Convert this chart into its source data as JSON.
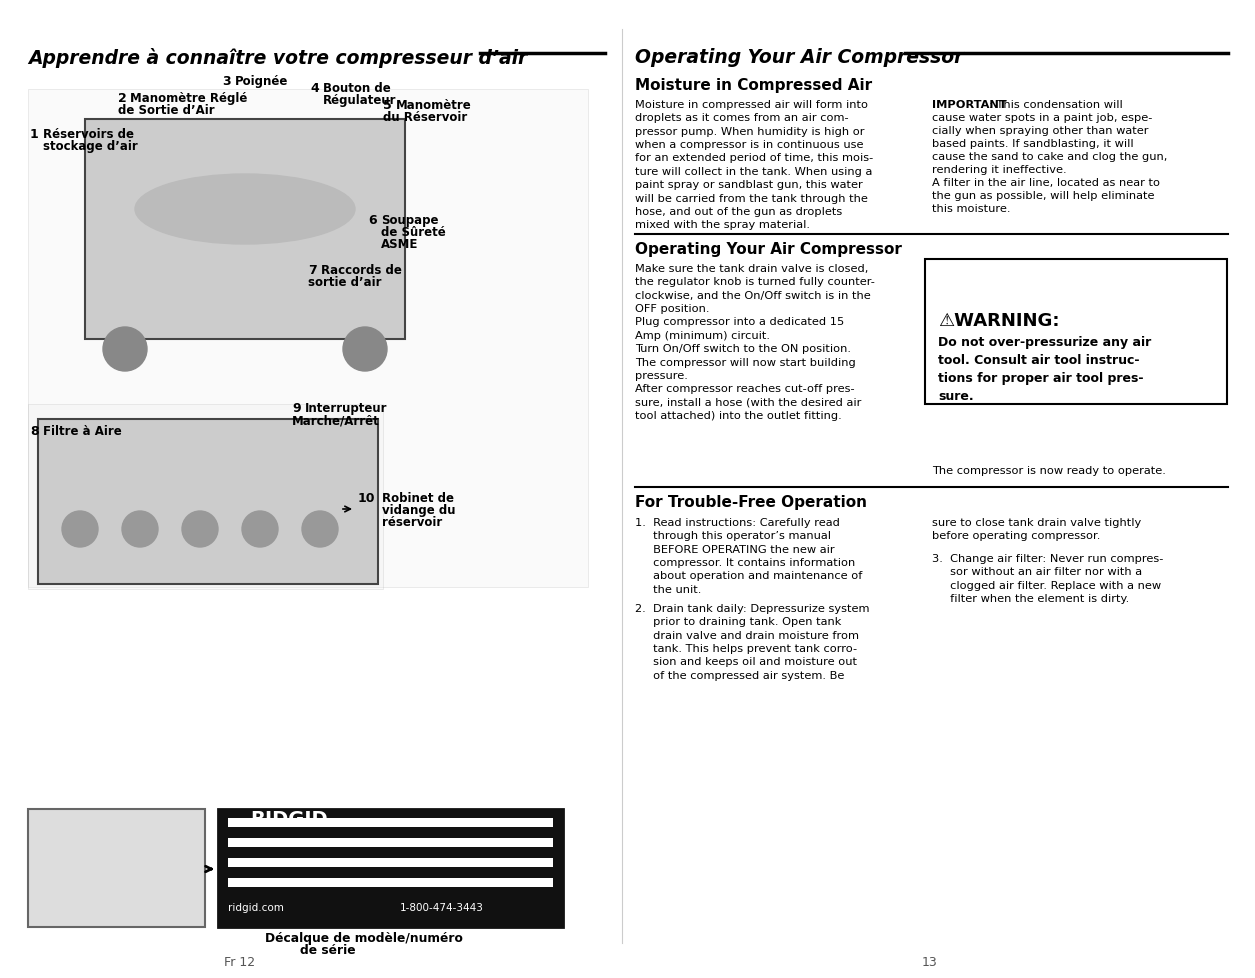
{
  "left_title": "Apprendre à connaître votre compresseur d’air",
  "right_title": "Operating Your Air Compressor",
  "section1_title": "Moisture in Compressed Air",
  "section2_title": "Operating Your Air Compressor",
  "section3_title": "For Trouble-Free Operation",
  "warning_title": "⚠WARNING:",
  "warning_body": "Do not over-pressurize any air\ntool. Consult air tool instruc-\ntions for proper air tool pres-\nsure.",
  "warning_footer": "The compressor is now ready to operate.",
  "bottom_left": "Fr 12",
  "bottom_right": "13",
  "bg_color": "#ffffff",
  "text_color": "#000000",
  "ridgid_url": "ridgid.com",
  "ridgid_phone": "1-800-474-3443",
  "decal_text1": "Décalque de modèle/numéro",
  "decal_text2": "de série"
}
